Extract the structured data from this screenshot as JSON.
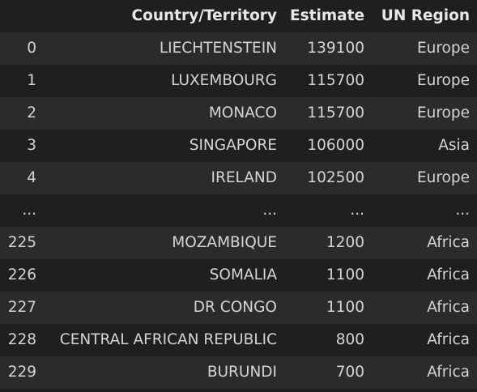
{
  "table": {
    "columns": [
      "",
      "Country/Territory",
      "Estimate",
      "UN Region"
    ],
    "rows": [
      {
        "index": "0",
        "country": "LIECHTENSTEIN",
        "estimate": "139100",
        "region": "Europe"
      },
      {
        "index": "1",
        "country": "LUXEMBOURG",
        "estimate": "115700",
        "region": "Europe"
      },
      {
        "index": "2",
        "country": "MONACO",
        "estimate": "115700",
        "region": "Europe"
      },
      {
        "index": "3",
        "country": "SINGAPORE",
        "estimate": "106000",
        "region": "Asia"
      },
      {
        "index": "4",
        "country": "IRELAND",
        "estimate": "102500",
        "region": "Europe"
      },
      {
        "index": "...",
        "country": "...",
        "estimate": "...",
        "region": "..."
      },
      {
        "index": "225",
        "country": "MOZAMBIQUE",
        "estimate": "1200",
        "region": "Africa"
      },
      {
        "index": "226",
        "country": "SOMALIA",
        "estimate": "1100",
        "region": "Africa"
      },
      {
        "index": "227",
        "country": "DR CONGO",
        "estimate": "1100",
        "region": "Africa"
      },
      {
        "index": "228",
        "country": "CENTRAL AFRICAN REPUBLIC",
        "estimate": "800",
        "region": "Africa"
      },
      {
        "index": "229",
        "country": "BURUNDI",
        "estimate": "700",
        "region": "Africa"
      }
    ]
  }
}
